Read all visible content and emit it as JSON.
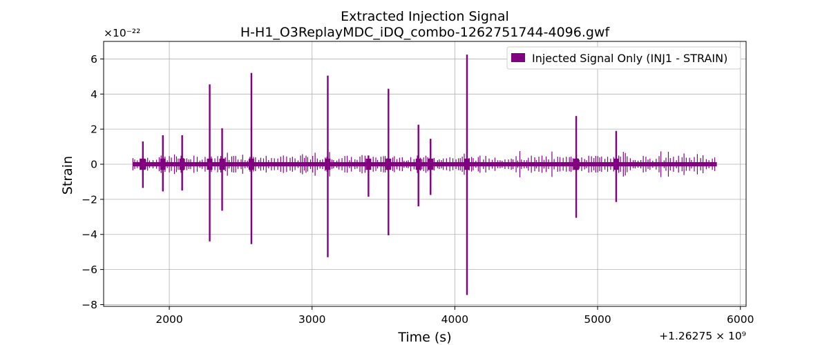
{
  "chart_data": {
    "type": "line",
    "title": "Extracted Injection Signal",
    "subtitle": "H-H1_O3ReplayMDC_iDQ_combo-1262751744-4096.gwf",
    "xlabel": "Time (s)",
    "ylabel": "Strain",
    "y_scale_label": "×10⁻²²",
    "x_offset_label": "+1.26275 × 10⁹",
    "xlim": [
      1540,
      6040
    ],
    "ylim": [
      -8.1,
      7.0
    ],
    "x_ticks": [
      2000,
      3000,
      4000,
      5000,
      6000
    ],
    "x_tick_labels": [
      "2000",
      "3000",
      "4000",
      "5000",
      "6000"
    ],
    "y_ticks": [
      -8,
      -6,
      -4,
      -2,
      0,
      2,
      4,
      6
    ],
    "y_tick_labels": [
      "−8",
      "−6",
      "−4",
      "−2",
      "0",
      "2",
      "4",
      "6"
    ],
    "grid": true,
    "legend_position": "top-right",
    "color": "#800080",
    "signal_x_range": [
      1745,
      5835
    ],
    "series": [
      {
        "name": "Injected Signal Only (INJ1 - STRAIN)",
        "spikes": [
          {
            "x": 1815,
            "ymax": 1.3,
            "ymin": -1.35
          },
          {
            "x": 1955,
            "ymax": 1.65,
            "ymin": -1.55
          },
          {
            "x": 2090,
            "ymax": 1.65,
            "ymin": -1.5
          },
          {
            "x": 2283,
            "ymax": 4.55,
            "ymin": -4.4
          },
          {
            "x": 2370,
            "ymax": 2.05,
            "ymin": -2.65
          },
          {
            "x": 2575,
            "ymax": 5.2,
            "ymin": -4.55
          },
          {
            "x": 3110,
            "ymax": 5.05,
            "ymin": -5.3
          },
          {
            "x": 3395,
            "ymax": 0.5,
            "ymin": -1.85
          },
          {
            "x": 3535,
            "ymax": 4.3,
            "ymin": -4.05
          },
          {
            "x": 3745,
            "ymax": 2.25,
            "ymin": -2.4
          },
          {
            "x": 3830,
            "ymax": 1.45,
            "ymin": -1.75
          },
          {
            "x": 4085,
            "ymax": 6.25,
            "ymin": -7.45
          },
          {
            "x": 4850,
            "ymax": 2.75,
            "ymin": -3.05
          },
          {
            "x": 5130,
            "ymax": 1.9,
            "ymin": -2.15
          }
        ]
      }
    ]
  }
}
